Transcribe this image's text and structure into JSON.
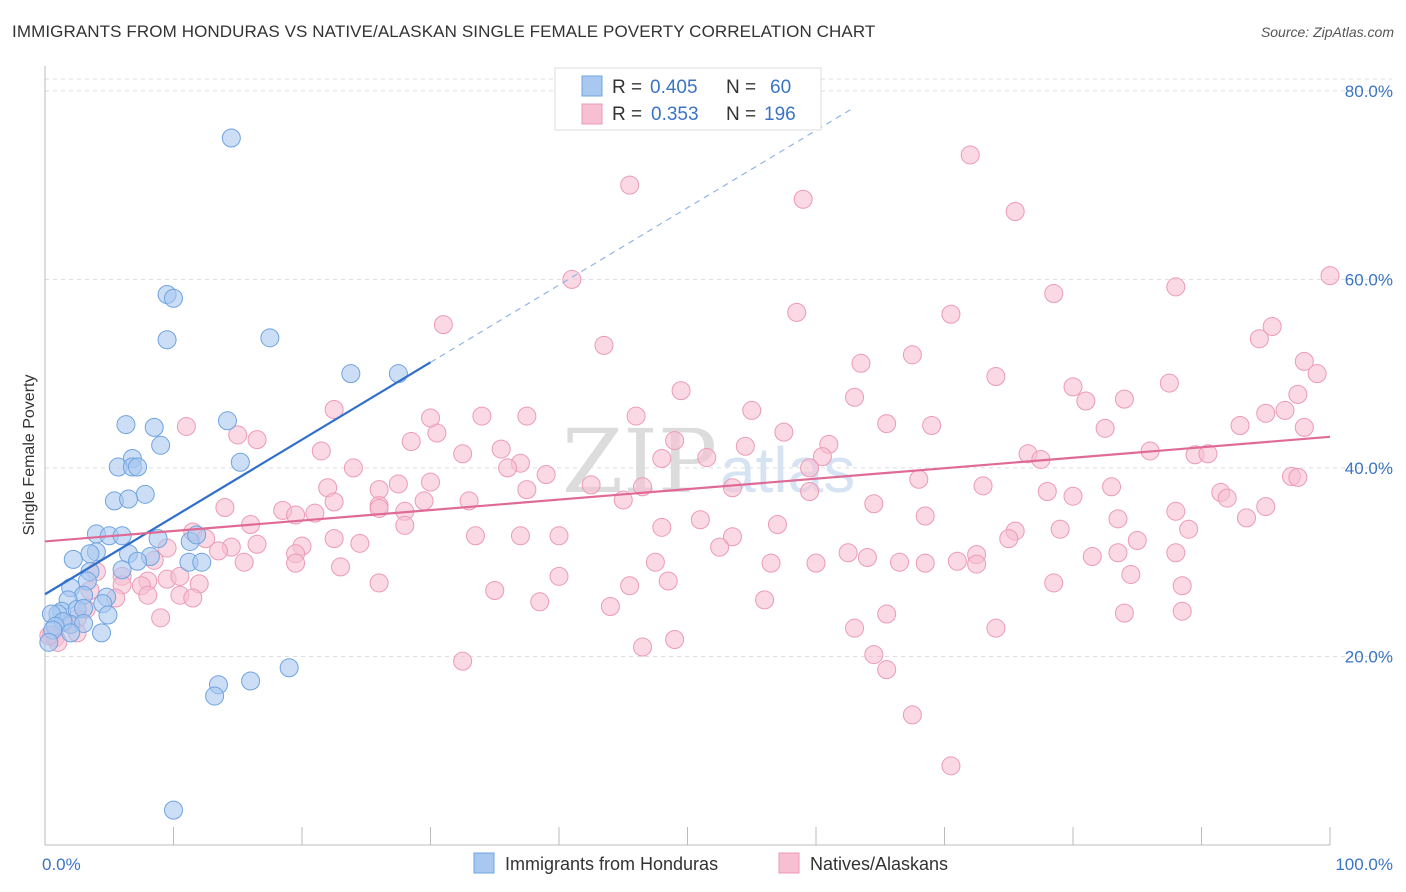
{
  "title": "IMMIGRANTS FROM HONDURAS VS NATIVE/ALASKAN SINGLE FEMALE POVERTY CORRELATION CHART",
  "source": "Source: ZipAtlas.com",
  "watermark": {
    "zip": "ZIP",
    "atlas": "atlas"
  },
  "legend": {
    "r_label": "R =",
    "n_label": "N =",
    "rows": [
      {
        "r": "0.405",
        "n": "60",
        "color": "#6fa3e0"
      },
      {
        "r": "0.353",
        "n": "196",
        "color": "#f0a0bd"
      }
    ]
  },
  "bottom_legend": [
    {
      "label": "Immigrants from Honduras",
      "color": "#6fa3e0"
    },
    {
      "label": "Natives/Alaskans",
      "color": "#f0a0bd"
    }
  ],
  "colors": {
    "blue_fill": "#a9c8f0",
    "blue_stroke": "#6fa3e0",
    "blue_line": "#2f6fcb",
    "pink_fill": "#f7bfd2",
    "pink_stroke": "#ec9ab7",
    "pink_line": "#e06a96",
    "grid": "#dddddd",
    "tick_label": "#3a74c4"
  },
  "chart_data": {
    "type": "scatter",
    "title": "IMMIGRANTS FROM HONDURAS VS NATIVE/ALASKAN SINGLE FEMALE POVERTY CORRELATION CHART",
    "xlabel": "",
    "ylabel": "Single Female Poverty",
    "xlim": [
      0,
      100
    ],
    "ylim": [
      0,
      82
    ],
    "x_tick_labels": [
      "0.0%",
      "100.0%"
    ],
    "y_ticks": [
      20,
      40,
      60,
      80
    ],
    "y_tick_labels": [
      "20.0%",
      "40.0%",
      "60.0%",
      "80.0%"
    ],
    "grid": true,
    "legend_position": "top-center",
    "series": [
      {
        "name": "Immigrants from Honduras",
        "r": 0.405,
        "n": 60,
        "trend": {
          "x0": 0,
          "y0": 26.6,
          "x1": 30,
          "y1": 51.2,
          "dashed_to_x": 63
        },
        "points": [
          [
            14.5,
            75.0
          ],
          [
            9.5,
            58.4
          ],
          [
            10.0,
            58.0
          ],
          [
            9.5,
            53.6
          ],
          [
            17.5,
            53.8
          ],
          [
            23.8,
            50.0
          ],
          [
            27.5,
            50.0
          ],
          [
            14.2,
            45.0
          ],
          [
            6.3,
            44.6
          ],
          [
            8.5,
            44.3
          ],
          [
            9.0,
            42.4
          ],
          [
            6.8,
            41.0
          ],
          [
            5.7,
            40.1
          ],
          [
            6.8,
            40.1
          ],
          [
            7.2,
            40.1
          ],
          [
            15.2,
            40.6
          ],
          [
            7.8,
            37.2
          ],
          [
            5.4,
            36.5
          ],
          [
            6.5,
            36.7
          ],
          [
            4.0,
            33.0
          ],
          [
            5.0,
            32.8
          ],
          [
            6.0,
            32.8
          ],
          [
            8.8,
            32.5
          ],
          [
            11.3,
            32.2
          ],
          [
            11.8,
            32.9
          ],
          [
            4.0,
            31.1
          ],
          [
            3.5,
            30.9
          ],
          [
            6.5,
            30.9
          ],
          [
            8.2,
            30.6
          ],
          [
            2.2,
            30.3
          ],
          [
            11.2,
            30.0
          ],
          [
            12.2,
            30.0
          ],
          [
            7.2,
            30.1
          ],
          [
            3.5,
            29.0
          ],
          [
            6.0,
            29.2
          ],
          [
            3.3,
            28.0
          ],
          [
            2.0,
            27.3
          ],
          [
            4.8,
            26.3
          ],
          [
            3.0,
            26.5
          ],
          [
            1.8,
            26.0
          ],
          [
            4.5,
            25.6
          ],
          [
            1.3,
            24.8
          ],
          [
            2.5,
            25.0
          ],
          [
            3.0,
            25.1
          ],
          [
            1.0,
            24.5
          ],
          [
            4.9,
            24.4
          ],
          [
            0.5,
            24.5
          ],
          [
            2.0,
            23.4
          ],
          [
            1.4,
            23.7
          ],
          [
            3.0,
            23.5
          ],
          [
            0.8,
            23.2
          ],
          [
            0.6,
            22.8
          ],
          [
            4.4,
            22.5
          ],
          [
            2.0,
            22.5
          ],
          [
            19.0,
            18.8
          ],
          [
            16.0,
            17.4
          ],
          [
            13.5,
            17.0
          ],
          [
            13.2,
            15.8
          ],
          [
            10.0,
            3.7
          ],
          [
            0.3,
            21.5
          ]
        ]
      },
      {
        "name": "Natives/Alaskans",
        "r": 0.353,
        "n": 196,
        "trend": {
          "x0": 0,
          "y0": 32.2,
          "x1": 100,
          "y1": 43.3
        },
        "points": [
          [
            72.0,
            73.2
          ],
          [
            45.5,
            70.0
          ],
          [
            59.0,
            68.5
          ],
          [
            75.5,
            67.2
          ],
          [
            41.0,
            60.0
          ],
          [
            100.0,
            60.4
          ],
          [
            88.0,
            59.2
          ],
          [
            78.5,
            58.5
          ],
          [
            58.5,
            56.5
          ],
          [
            70.5,
            56.3
          ],
          [
            95.5,
            55.0
          ],
          [
            31.0,
            55.2
          ],
          [
            43.5,
            53.0
          ],
          [
            94.5,
            53.7
          ],
          [
            67.5,
            52.0
          ],
          [
            63.5,
            51.1
          ],
          [
            98.0,
            51.3
          ],
          [
            99.0,
            50.0
          ],
          [
            74.0,
            49.7
          ],
          [
            87.5,
            49.0
          ],
          [
            49.5,
            48.2
          ],
          [
            80.0,
            48.6
          ],
          [
            63.0,
            47.5
          ],
          [
            84.0,
            47.3
          ],
          [
            97.5,
            47.8
          ],
          [
            81.0,
            47.1
          ],
          [
            22.5,
            46.2
          ],
          [
            46.0,
            45.5
          ],
          [
            55.0,
            46.1
          ],
          [
            96.5,
            46.1
          ],
          [
            34.0,
            45.5
          ],
          [
            37.5,
            45.5
          ],
          [
            65.5,
            44.7
          ],
          [
            69.0,
            44.5
          ],
          [
            93.0,
            44.5
          ],
          [
            95.0,
            45.8
          ],
          [
            98.0,
            44.3
          ],
          [
            57.5,
            43.8
          ],
          [
            11.0,
            44.4
          ],
          [
            15.0,
            43.5
          ],
          [
            30.5,
            43.7
          ],
          [
            82.5,
            44.2
          ],
          [
            16.5,
            43.0
          ],
          [
            28.5,
            42.8
          ],
          [
            49.0,
            42.9
          ],
          [
            61.0,
            42.5
          ],
          [
            35.5,
            42.0
          ],
          [
            32.5,
            41.5
          ],
          [
            76.5,
            41.5
          ],
          [
            86.0,
            41.8
          ],
          [
            89.5,
            41.4
          ],
          [
            54.5,
            42.3
          ],
          [
            90.5,
            41.5
          ],
          [
            21.5,
            41.8
          ],
          [
            48.0,
            41.0
          ],
          [
            60.5,
            41.2
          ],
          [
            77.5,
            40.9
          ],
          [
            51.5,
            41.1
          ],
          [
            37.0,
            40.5
          ],
          [
            24.0,
            40.0
          ],
          [
            36.0,
            40.0
          ],
          [
            59.5,
            40.0
          ],
          [
            39.0,
            39.3
          ],
          [
            97.0,
            39.1
          ],
          [
            97.5,
            39.0
          ],
          [
            68.0,
            38.8
          ],
          [
            30.0,
            38.5
          ],
          [
            27.5,
            38.3
          ],
          [
            42.5,
            38.2
          ],
          [
            46.5,
            38.0
          ],
          [
            53.5,
            37.9
          ],
          [
            73.0,
            38.1
          ],
          [
            83.0,
            38.0
          ],
          [
            78.0,
            37.5
          ],
          [
            22.0,
            37.9
          ],
          [
            26.0,
            37.7
          ],
          [
            37.5,
            37.7
          ],
          [
            59.5,
            37.5
          ],
          [
            91.5,
            37.4
          ],
          [
            80.0,
            37.0
          ],
          [
            45.0,
            36.6
          ],
          [
            22.5,
            36.4
          ],
          [
            26.0,
            36.0
          ],
          [
            33.0,
            36.5
          ],
          [
            29.5,
            36.5
          ],
          [
            64.5,
            36.2
          ],
          [
            92.0,
            36.8
          ],
          [
            18.5,
            35.5
          ],
          [
            26.0,
            35.7
          ],
          [
            28.0,
            35.4
          ],
          [
            95.0,
            35.9
          ],
          [
            14.0,
            35.8
          ],
          [
            21.0,
            35.2
          ],
          [
            19.5,
            35.0
          ],
          [
            88.0,
            35.4
          ],
          [
            83.5,
            34.6
          ],
          [
            51.0,
            34.5
          ],
          [
            68.5,
            34.9
          ],
          [
            93.5,
            34.7
          ],
          [
            16.0,
            34.0
          ],
          [
            57.0,
            34.0
          ],
          [
            28.0,
            33.9
          ],
          [
            48.0,
            33.7
          ],
          [
            79.0,
            33.5
          ],
          [
            75.5,
            33.3
          ],
          [
            89.0,
            33.5
          ],
          [
            11.5,
            33.2
          ],
          [
            37.0,
            32.8
          ],
          [
            33.5,
            32.8
          ],
          [
            22.5,
            32.5
          ],
          [
            12.5,
            32.5
          ],
          [
            53.5,
            32.7
          ],
          [
            40.0,
            32.8
          ],
          [
            75.0,
            32.5
          ],
          [
            85.0,
            32.3
          ],
          [
            24.5,
            32.0
          ],
          [
            16.5,
            31.9
          ],
          [
            20.0,
            31.7
          ],
          [
            14.5,
            31.6
          ],
          [
            52.5,
            31.6
          ],
          [
            83.5,
            31.0
          ],
          [
            62.5,
            31.0
          ],
          [
            72.5,
            30.8
          ],
          [
            88.0,
            31.0
          ],
          [
            9.5,
            31.5
          ],
          [
            13.5,
            31.2
          ],
          [
            19.5,
            30.9
          ],
          [
            64.0,
            30.5
          ],
          [
            71.0,
            30.1
          ],
          [
            81.5,
            30.6
          ],
          [
            68.5,
            29.9
          ],
          [
            66.5,
            30.0
          ],
          [
            47.5,
            30.0
          ],
          [
            56.5,
            29.9
          ],
          [
            60.0,
            29.9
          ],
          [
            72.5,
            29.8
          ],
          [
            19.5,
            29.9
          ],
          [
            8.5,
            30.2
          ],
          [
            15.5,
            30.0
          ],
          [
            23.0,
            29.5
          ],
          [
            4.0,
            29.0
          ],
          [
            6.0,
            28.5
          ],
          [
            8.0,
            28.0
          ],
          [
            9.5,
            28.2
          ],
          [
            10.5,
            28.5
          ],
          [
            3.5,
            27.0
          ],
          [
            6.0,
            27.6
          ],
          [
            7.5,
            27.5
          ],
          [
            12.0,
            27.7
          ],
          [
            26.0,
            27.8
          ],
          [
            35.0,
            27.0
          ],
          [
            45.5,
            27.5
          ],
          [
            78.5,
            27.8
          ],
          [
            84.5,
            28.7
          ],
          [
            88.5,
            27.5
          ],
          [
            5.5,
            26.2
          ],
          [
            8.0,
            26.5
          ],
          [
            10.5,
            26.5
          ],
          [
            40.0,
            28.5
          ],
          [
            48.5,
            28.0
          ],
          [
            56.0,
            26.0
          ],
          [
            38.5,
            25.8
          ],
          [
            44.0,
            25.3
          ],
          [
            11.5,
            26.2
          ],
          [
            84.0,
            24.6
          ],
          [
            3.2,
            25.0
          ],
          [
            2.5,
            24.0
          ],
          [
            9.0,
            24.1
          ],
          [
            1.5,
            23.6
          ],
          [
            2.5,
            22.5
          ],
          [
            0.5,
            22.3
          ],
          [
            0.8,
            22.0
          ],
          [
            1.0,
            21.5
          ],
          [
            0.3,
            22.2
          ],
          [
            88.5,
            24.8
          ],
          [
            65.5,
            24.5
          ],
          [
            74.0,
            23.0
          ],
          [
            63.0,
            23.0
          ],
          [
            49.0,
            21.8
          ],
          [
            46.5,
            21.0
          ],
          [
            32.5,
            19.5
          ],
          [
            64.5,
            20.2
          ],
          [
            65.5,
            18.6
          ],
          [
            67.5,
            13.8
          ],
          [
            70.5,
            8.4
          ],
          [
            30.0,
            45.3
          ]
        ]
      }
    ]
  }
}
